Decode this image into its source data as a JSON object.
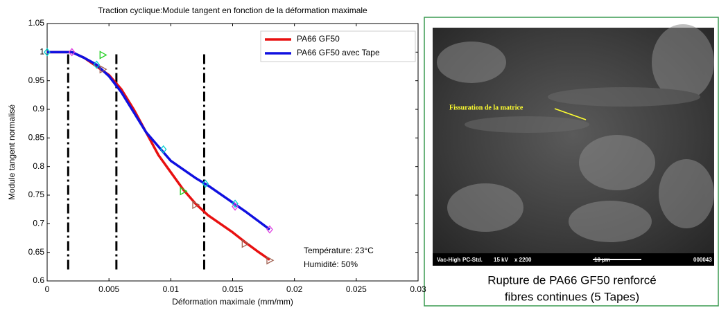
{
  "chart_data": {
    "type": "line",
    "title": "Traction cyclique:Module tangent en fonction de la déformation maximale",
    "xlabel": "Déformation maximale (mm/mm)",
    "ylabel": "Module tangent normalisé",
    "x": [
      0,
      0.001,
      0.002,
      0.003,
      0.004,
      0.005,
      0.006,
      0.007,
      0.008,
      0.009,
      0.01,
      0.011,
      0.012,
      0.013,
      0.014,
      0.015,
      0.016,
      0.017,
      0.018
    ],
    "series": [
      {
        "name": "PA66 GF50",
        "color": "#e81010",
        "values": [
          1,
          1,
          1,
          0.99,
          0.975,
          0.96,
          0.935,
          0.9,
          0.86,
          0.82,
          0.79,
          0.76,
          0.735,
          0.715,
          0.7,
          0.685,
          0.668,
          0.652,
          0.637
        ]
      },
      {
        "name": "PA66 GF50 avec Tape",
        "color": "#1010e0",
        "values": [
          1,
          1,
          1,
          0.99,
          0.978,
          0.958,
          0.93,
          0.895,
          0.86,
          0.835,
          0.81,
          0.795,
          0.78,
          0.767,
          0.752,
          0.737,
          0.722,
          0.706,
          0.69
        ]
      }
    ],
    "markers": [
      {
        "x": 0,
        "y": 1,
        "color": "#00d0d0",
        "shape": "diamond"
      },
      {
        "x": 0.004,
        "y": 0.978,
        "color": "#00d0d0",
        "shape": "diamond"
      },
      {
        "x": 0.0094,
        "y": 0.83,
        "color": "#00d0d0",
        "shape": "diamond"
      },
      {
        "x": 0.0128,
        "y": 0.77,
        "color": "#00d0d0",
        "shape": "diamond"
      },
      {
        "x": 0.0152,
        "y": 0.735,
        "color": "#00d0d0",
        "shape": "diamond"
      },
      {
        "x": 0.002,
        "y": 1,
        "color": "#e040e0",
        "shape": "diamond"
      },
      {
        "x": 0.0152,
        "y": 0.73,
        "color": "#e040e0",
        "shape": "diamond"
      },
      {
        "x": 0.018,
        "y": 0.69,
        "color": "#e040e0",
        "shape": "diamond"
      },
      {
        "x": 0.0045,
        "y": 0.995,
        "color": "#20d020",
        "shape": "triangle"
      },
      {
        "x": 0.011,
        "y": 0.757,
        "color": "#20d020",
        "shape": "triangle"
      },
      {
        "x": 0.0045,
        "y": 0.97,
        "color": "#a06050",
        "shape": "triangle"
      },
      {
        "x": 0.012,
        "y": 0.733,
        "color": "#a06050",
        "shape": "triangle"
      },
      {
        "x": 0.016,
        "y": 0.665,
        "color": "#a06050",
        "shape": "triangle"
      },
      {
        "x": 0.018,
        "y": 0.636,
        "color": "#a06050",
        "shape": "triangle"
      }
    ],
    "vlines": [
      0.0017,
      0.0056,
      0.0127
    ],
    "vline_range": [
      0.62,
      1
    ],
    "xlim": [
      0,
      0.03
    ],
    "xticks": [
      0,
      0.005,
      0.01,
      0.015,
      0.02,
      0.025,
      0.03
    ],
    "ylim": [
      0.6,
      1.05
    ],
    "yticks": [
      0.6,
      0.65,
      0.7,
      0.75,
      0.8,
      0.85,
      0.9,
      0.95,
      1,
      1.05
    ],
    "legend": "upper right",
    "annotations": [
      "Température: 23°C",
      "Humidité: 50%"
    ]
  },
  "image": {
    "label": "Fissuration de la matrice",
    "info": [
      "Vac-High",
      "PC-Std.",
      "15 kV",
      "x 2200",
      "10 µm",
      "000043"
    ],
    "caption": [
      "Rupture de PA66 GF50 renforcé",
      "fibres continues (5 Tapes)"
    ]
  }
}
